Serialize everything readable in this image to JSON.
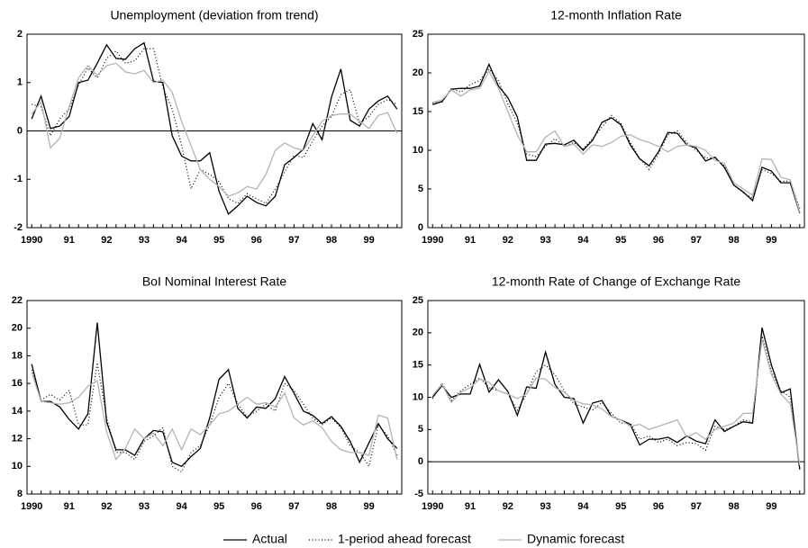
{
  "chart_data": [
    {
      "type": "line",
      "title": "Unemployment (deviation from trend)",
      "categories": [
        "1990",
        null,
        null,
        null,
        "91",
        null,
        null,
        null,
        "92",
        null,
        null,
        null,
        "93",
        null,
        null,
        null,
        "94",
        null,
        null,
        null,
        "95",
        null,
        null,
        null,
        "96",
        null,
        null,
        null,
        "97",
        null,
        null,
        null,
        "98",
        null,
        null,
        null,
        "99",
        null,
        null,
        null
      ],
      "ylim": [
        -2,
        2
      ],
      "yticks": [
        -2,
        -1,
        0,
        1,
        2
      ],
      "grid": false,
      "zero_line": true,
      "legend": "bottom",
      "series": [
        {
          "name": "Actual",
          "color": "#000000",
          "linestyle": "solid",
          "values": [
            0.25,
            0.72,
            0.05,
            0.1,
            0.3,
            1.0,
            1.05,
            1.4,
            1.78,
            1.5,
            1.48,
            1.7,
            1.82,
            1.03,
            1.0,
            -0.1,
            -0.52,
            -0.62,
            -0.62,
            -0.45,
            -1.25,
            -1.72,
            -1.55,
            -1.35,
            -1.48,
            -1.55,
            -1.35,
            -0.7,
            -0.55,
            -0.38,
            0.15,
            -0.18,
            0.7,
            1.28,
            0.22,
            0.1,
            0.45,
            0.62,
            0.72,
            0.45
          ]
        },
        {
          "name": "1-period ahead forecast",
          "color": "#000000",
          "linestyle": "dotted",
          "values": [
            0.55,
            0.5,
            -0.1,
            0.25,
            0.45,
            0.95,
            1.3,
            1.1,
            1.5,
            1.65,
            1.4,
            1.45,
            1.7,
            1.7,
            0.9,
            0.45,
            -0.3,
            -1.2,
            -0.8,
            -0.9,
            -1.05,
            -1.4,
            -1.5,
            -1.3,
            -1.4,
            -1.5,
            -1.2,
            -0.85,
            -0.5,
            -0.55,
            -0.2,
            0.1,
            0.3,
            0.75,
            0.85,
            0.15,
            0.3,
            0.55,
            0.65,
            0.55
          ]
        },
        {
          "name": "Dynamic forecast",
          "color": "#b4b4b4",
          "linestyle": "solid",
          "values": [
            0.35,
            0.6,
            -0.35,
            -0.15,
            0.5,
            1.1,
            1.35,
            1.15,
            1.35,
            1.4,
            1.22,
            1.18,
            1.25,
            1.0,
            1.05,
            0.8,
            0.2,
            -0.3,
            -0.8,
            -1.0,
            -1.15,
            -1.35,
            -1.28,
            -1.15,
            -1.2,
            -0.9,
            -0.4,
            -0.25,
            -0.35,
            -0.4,
            -0.1,
            0.2,
            0.32,
            0.35,
            0.35,
            0.2,
            0.05,
            0.32,
            0.38,
            -0.05
          ]
        }
      ]
    },
    {
      "type": "line",
      "title": "12-month Inflation Rate",
      "categories": [
        "1990",
        null,
        null,
        null,
        "91",
        null,
        null,
        null,
        "92",
        null,
        null,
        null,
        "93",
        null,
        null,
        null,
        "94",
        null,
        null,
        null,
        "95",
        null,
        null,
        null,
        "96",
        null,
        null,
        null,
        "97",
        null,
        null,
        null,
        "98",
        null,
        null,
        null,
        "99",
        null,
        null,
        null
      ],
      "ylim": [
        0,
        25
      ],
      "yticks": [
        0,
        5,
        10,
        15,
        20,
        25
      ],
      "grid": false,
      "zero_line": false,
      "series": [
        {
          "color": "#000000",
          "linestyle": "solid",
          "values": [
            15.9,
            16.3,
            17.9,
            18.0,
            18.0,
            18.3,
            21.1,
            18.3,
            16.8,
            14.3,
            8.7,
            8.7,
            10.8,
            10.9,
            10.7,
            11.3,
            10.0,
            11.3,
            13.6,
            14.2,
            13.3,
            10.7,
            8.9,
            8.0,
            9.8,
            12.3,
            12.2,
            10.7,
            10.3,
            8.6,
            9.1,
            7.8,
            5.5,
            4.6,
            3.5,
            7.8,
            7.3,
            5.8,
            5.8,
            1.9
          ]
        },
        {
          "color": "#000000",
          "linestyle": "dotted",
          "values": [
            16.1,
            16.2,
            18.0,
            17.5,
            18.5,
            19.0,
            20.5,
            19.0,
            16.0,
            13.5,
            9.5,
            9.2,
            10.5,
            11.5,
            10.5,
            11.0,
            10.2,
            11.5,
            13.0,
            14.5,
            13.5,
            11.0,
            9.0,
            7.5,
            9.5,
            12.0,
            12.5,
            11.0,
            10.0,
            9.0,
            9.0,
            8.0,
            5.5,
            4.5,
            3.8,
            7.5,
            7.0,
            6.0,
            6.0,
            2.5
          ]
        },
        {
          "color": "#b4b4b4",
          "linestyle": "solid",
          "values": [
            16.2,
            16.5,
            17.8,
            17.0,
            17.8,
            18.0,
            20.2,
            18.0,
            15.0,
            12.0,
            9.8,
            9.8,
            11.7,
            12.5,
            10.5,
            10.8,
            9.5,
            10.7,
            10.5,
            11.0,
            11.8,
            12.0,
            11.4,
            11.0,
            10.5,
            9.8,
            10.5,
            10.7,
            10.5,
            10.0,
            8.7,
            8.3,
            5.8,
            5.0,
            4.2,
            8.9,
            8.8,
            6.5,
            6.2,
            2.0
          ]
        }
      ]
    },
    {
      "type": "line",
      "title": "BoI Nominal Interest Rate",
      "categories": [
        "1990",
        null,
        null,
        null,
        "91",
        null,
        null,
        null,
        "92",
        null,
        null,
        null,
        "93",
        null,
        null,
        null,
        "94",
        null,
        null,
        null,
        "95",
        null,
        null,
        null,
        "96",
        null,
        null,
        null,
        "97",
        null,
        null,
        null,
        "98",
        null,
        null,
        null,
        "99",
        null,
        null,
        null
      ],
      "ylim": [
        8,
        22
      ],
      "yticks": [
        8,
        10,
        12,
        14,
        16,
        18,
        20,
        22
      ],
      "grid": false,
      "zero_line": false,
      "series": [
        {
          "color": "#000000",
          "linestyle": "solid",
          "values": [
            17.4,
            14.7,
            14.7,
            14.3,
            13.4,
            12.7,
            13.8,
            20.4,
            13.2,
            11.2,
            11.2,
            10.8,
            12.0,
            12.6,
            12.5,
            10.3,
            10.0,
            10.7,
            11.3,
            13.5,
            16.3,
            17.0,
            14.2,
            13.5,
            14.3,
            14.2,
            14.9,
            16.5,
            15.3,
            14.0,
            13.7,
            13.1,
            13.6,
            12.9,
            11.8,
            10.3,
            11.7,
            13.1,
            12.0,
            11.3
          ]
        },
        {
          "color": "#000000",
          "linestyle": "dotted",
          "values": [
            17.0,
            14.8,
            15.2,
            14.8,
            15.5,
            13.0,
            13.0,
            17.5,
            13.5,
            11.0,
            11.0,
            10.5,
            11.8,
            12.2,
            12.8,
            10.0,
            9.6,
            11.0,
            11.5,
            13.0,
            15.0,
            16.0,
            14.5,
            13.6,
            14.0,
            14.5,
            14.0,
            16.0,
            15.5,
            14.5,
            13.5,
            13.0,
            13.5,
            12.8,
            11.5,
            11.0,
            10.0,
            13.0,
            12.2,
            10.8
          ]
        },
        {
          "color": "#b4b4b4",
          "linestyle": "solid",
          "values": [
            16.8,
            14.7,
            14.6,
            14.5,
            14.6,
            15.0,
            15.8,
            16.2,
            12.5,
            10.5,
            11.3,
            12.7,
            12.0,
            12.4,
            11.5,
            12.7,
            11.2,
            12.7,
            12.3,
            13.0,
            13.8,
            14.0,
            14.5,
            15.0,
            14.5,
            14.6,
            14.3,
            15.3,
            13.5,
            13.0,
            13.3,
            12.8,
            11.8,
            11.2,
            11.0,
            11.0,
            10.8,
            13.7,
            13.5,
            10.5
          ]
        }
      ]
    },
    {
      "type": "line",
      "title": "12-month Rate of Change of Exchange Rate",
      "categories": [
        "1990",
        null,
        null,
        null,
        "91",
        null,
        null,
        null,
        "92",
        null,
        null,
        null,
        "93",
        null,
        null,
        null,
        "94",
        null,
        null,
        null,
        "95",
        null,
        null,
        null,
        "96",
        null,
        null,
        null,
        "97",
        null,
        null,
        null,
        "98",
        null,
        null,
        null,
        "99",
        null,
        null,
        null
      ],
      "ylim": [
        -5,
        25
      ],
      "yticks": [
        -5,
        0,
        5,
        10,
        15,
        20,
        25
      ],
      "grid": false,
      "zero_line": true,
      "series": [
        {
          "color": "#000000",
          "linestyle": "solid",
          "values": [
            10.0,
            11.8,
            10.0,
            10.5,
            10.5,
            15.1,
            10.8,
            12.7,
            10.9,
            7.2,
            11.6,
            11.4,
            17.0,
            12.0,
            10.0,
            9.8,
            6.0,
            9.1,
            9.5,
            7.0,
            6.5,
            5.8,
            2.6,
            3.5,
            3.5,
            3.8,
            3.0,
            4.0,
            3.2,
            2.8,
            6.5,
            4.7,
            5.5,
            6.2,
            6.0,
            20.8,
            15.0,
            10.7,
            11.3,
            -1.2
          ]
        },
        {
          "color": "#000000",
          "linestyle": "dotted",
          "values": [
            9.8,
            12.2,
            9.5,
            11.0,
            12.0,
            13.0,
            11.5,
            11.0,
            10.5,
            8.0,
            10.5,
            14.0,
            15.0,
            13.5,
            11.0,
            9.0,
            8.5,
            8.0,
            9.2,
            7.5,
            6.0,
            6.0,
            3.5,
            4.0,
            3.0,
            3.5,
            2.5,
            3.0,
            2.8,
            1.8,
            5.5,
            5.0,
            5.5,
            6.5,
            6.2,
            19.5,
            14.0,
            11.0,
            10.0,
            -1.0
          ]
        },
        {
          "color": "#b4b4b4",
          "linestyle": "solid",
          "values": [
            10.3,
            12.0,
            9.2,
            10.8,
            11.5,
            12.8,
            12.3,
            11.0,
            10.5,
            9.8,
            10.5,
            13.0,
            12.8,
            11.5,
            10.8,
            9.5,
            9.0,
            8.8,
            8.2,
            7.0,
            6.5,
            5.5,
            5.8,
            5.0,
            5.5,
            6.0,
            6.5,
            3.8,
            4.5,
            3.5,
            5.0,
            5.5,
            6.0,
            7.5,
            7.5,
            19.0,
            13.5,
            10.5,
            9.0,
            -0.5
          ]
        }
      ]
    }
  ]
}
